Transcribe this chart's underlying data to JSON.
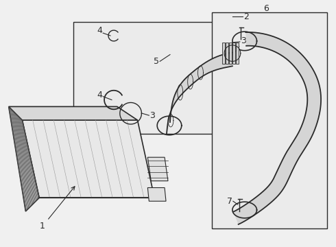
{
  "bg_color": "#f0f0f0",
  "line_color": "#2a2a2a",
  "fig_width": 4.9,
  "fig_height": 3.6,
  "dpi": 100
}
